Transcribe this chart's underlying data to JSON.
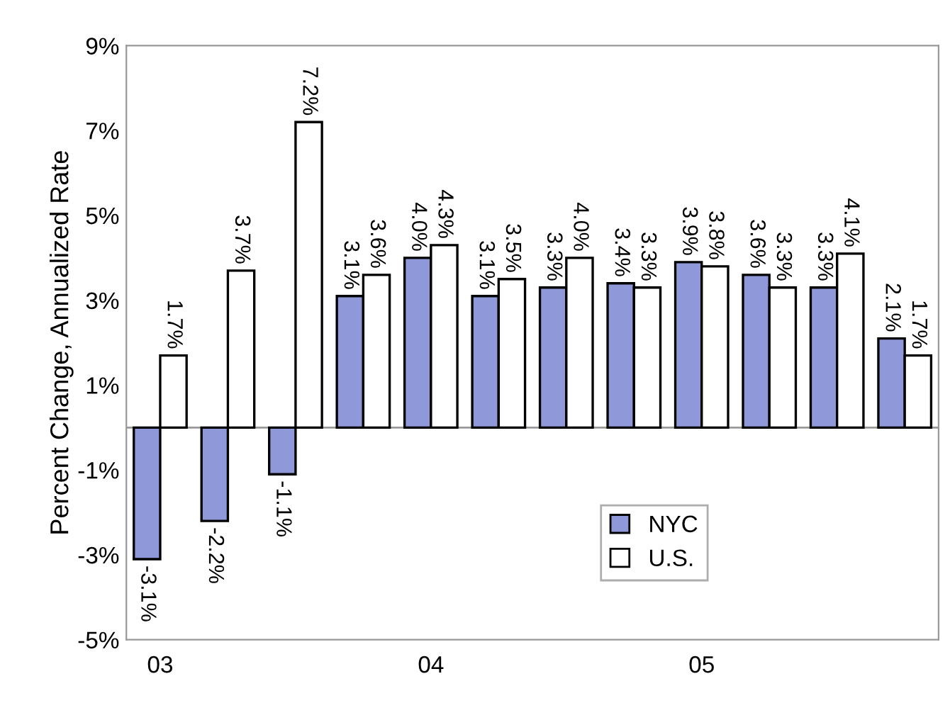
{
  "chart_data": {
    "type": "bar",
    "ylabel": "Percent Change, Annualized Rate",
    "categories": [
      "03",
      null,
      null,
      null,
      "04",
      null,
      null,
      null,
      "05",
      null,
      null,
      null
    ],
    "series": [
      {
        "name": "NYC",
        "color": "#8f98d8",
        "values": [
          -3.1,
          -2.2,
          -1.1,
          3.1,
          4.0,
          3.1,
          3.3,
          3.4,
          3.9,
          3.6,
          3.3,
          2.1
        ],
        "value_labels": [
          "-3.1%",
          "-2.2%",
          "-1.1%",
          "3.1%",
          "4.0%",
          "3.1%",
          "3.3%",
          "3.4%",
          "3.9%",
          "3.6%",
          "3.3%",
          "2.1%"
        ]
      },
      {
        "name": "U.S.",
        "color": "#ffffff",
        "values": [
          1.7,
          3.7,
          7.2,
          3.6,
          4.3,
          3.5,
          4.0,
          3.3,
          3.8,
          3.3,
          4.1,
          1.7
        ],
        "value_labels": [
          "1.7%",
          "3.7%",
          "7.2%",
          "3.6%",
          "4.3%",
          "3.5%",
          "4.0%",
          "3.3%",
          "3.8%",
          "3.3%",
          "4.1%",
          "1.7%"
        ]
      }
    ],
    "ylim": [
      -5,
      9
    ],
    "yticks": [
      {
        "value": -5,
        "label": "-5%"
      },
      {
        "value": -3,
        "label": "-3%"
      },
      {
        "value": -1,
        "label": "-1%"
      },
      {
        "value": 1,
        "label": "1%"
      },
      {
        "value": 3,
        "label": "3%"
      },
      {
        "value": 5,
        "label": "5%"
      },
      {
        "value": 7,
        "label": "7%"
      },
      {
        "value": 9,
        "label": "9%"
      }
    ],
    "grid": false,
    "legend": "bottom"
  }
}
